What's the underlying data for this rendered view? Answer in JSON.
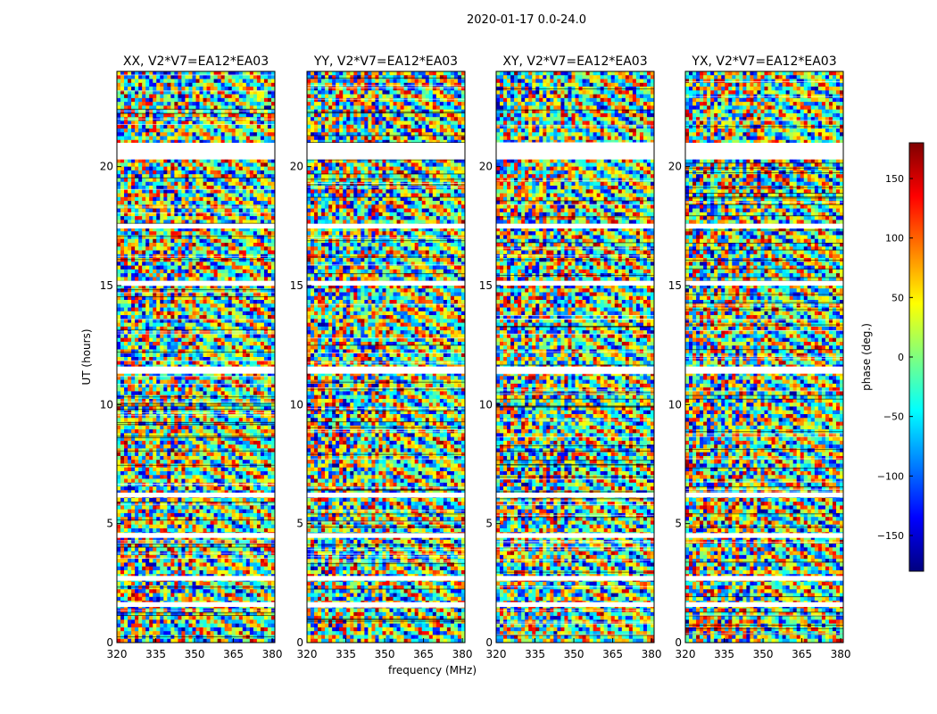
{
  "figure": {
    "suptitle": "2020-01-17 0.0-24.0"
  },
  "chart_data": [
    {
      "type": "heatmap",
      "title": "XX, V2*V7=EA12*EA03",
      "xlabel": "",
      "ylabel": "UT (hours)",
      "xlim": [
        320,
        381
      ],
      "ylim": [
        0,
        24
      ],
      "x_ticks": [
        "320",
        "335",
        "350",
        "365",
        "380"
      ],
      "y_ticks": [
        "0",
        "5",
        "10",
        "15",
        "20"
      ],
      "flagged_ut_hours": [
        [
          20.3,
          21.0
        ],
        [
          17.4,
          17.6
        ],
        [
          15.0,
          15.2
        ],
        [
          11.3,
          11.6
        ],
        [
          6.1,
          6.3
        ],
        [
          4.4,
          4.6
        ],
        [
          2.6,
          2.8
        ],
        [
          1.5,
          1.7
        ]
      ]
    },
    {
      "type": "heatmap",
      "title": "YY, V2*V7=EA12*EA03",
      "xlabel": "frequency (MHz)",
      "ylabel": "",
      "xlim": [
        320,
        381
      ],
      "ylim": [
        0,
        24
      ],
      "x_ticks": [
        "320",
        "335",
        "350",
        "365",
        "380"
      ],
      "y_ticks": [
        "0",
        "5",
        "10",
        "15",
        "20"
      ],
      "flagged_ut_hours": [
        [
          20.3,
          21.0
        ],
        [
          17.4,
          17.6
        ],
        [
          15.0,
          15.2
        ],
        [
          11.3,
          11.6
        ],
        [
          6.1,
          6.3
        ],
        [
          4.4,
          4.6
        ],
        [
          2.6,
          2.8
        ],
        [
          1.5,
          1.7
        ]
      ]
    },
    {
      "type": "heatmap",
      "title": "XY, V2*V7=EA12*EA03",
      "xlabel": "",
      "ylabel": "",
      "xlim": [
        320,
        381
      ],
      "ylim": [
        0,
        24
      ],
      "x_ticks": [
        "320",
        "335",
        "350",
        "365",
        "380"
      ],
      "y_ticks": [
        "0",
        "5",
        "10",
        "15",
        "20"
      ],
      "flagged_ut_hours": [
        [
          20.3,
          21.0
        ],
        [
          17.4,
          17.6
        ],
        [
          15.0,
          15.2
        ],
        [
          11.3,
          11.6
        ],
        [
          6.1,
          6.3
        ],
        [
          4.4,
          4.6
        ],
        [
          2.6,
          2.8
        ],
        [
          1.5,
          1.7
        ]
      ]
    },
    {
      "type": "heatmap",
      "title": "YX, V2*V7=EA12*EA03",
      "xlabel": "",
      "ylabel": "",
      "xlim": [
        320,
        381
      ],
      "ylim": [
        0,
        24
      ],
      "x_ticks": [
        "320",
        "335",
        "350",
        "365",
        "380"
      ],
      "y_ticks": [
        "0",
        "5",
        "10",
        "15",
        "20"
      ],
      "flagged_ut_hours": [
        [
          20.3,
          21.0
        ],
        [
          17.4,
          17.6
        ],
        [
          15.0,
          15.2
        ],
        [
          11.3,
          11.6
        ],
        [
          6.1,
          6.3
        ],
        [
          4.4,
          4.6
        ],
        [
          2.6,
          2.8
        ],
        [
          1.5,
          1.7
        ]
      ]
    }
  ],
  "colorbar": {
    "label": "phase (deg.)",
    "range": [
      -180,
      180
    ],
    "ticks": [
      150,
      100,
      50,
      0,
      -50,
      -100,
      -150
    ],
    "tick_labels": [
      "150",
      "100",
      "50",
      "0",
      "−50",
      "−100",
      "−150"
    ],
    "colormap": "jet",
    "colors": [
      "#00007f",
      "#0000ff",
      "#007fff",
      "#00ffff",
      "#7fff7f",
      "#ffff00",
      "#ff7f00",
      "#ff0000",
      "#7f0000"
    ]
  }
}
